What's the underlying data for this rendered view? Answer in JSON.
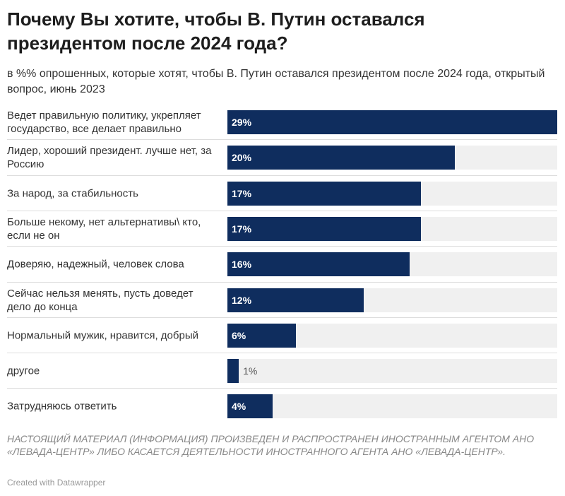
{
  "chart_data": {
    "type": "bar",
    "title": "Почему Вы хотите, чтобы В. Путин оставался президентом после 2024 года?",
    "subtitle": "в %% опрошенных, которые хотят, чтобы В. Путин оставался президентом после 2024 года, открытый вопрос, июнь 2023",
    "categories": [
      "Ведет правильную политику, укрепляет государство, все делает правильно",
      "Лидер, хороший президент. лучше нет, за Россию",
      "За народ, за стабильность",
      "Больше некому, нет альтернативы\\ кто, если не он",
      "Доверяю, надежный, человек слова",
      "Сейчас нельзя менять, пусть доведет дело до конца",
      "Нормальный мужик, нравится, добрый",
      "другое",
      "Затрудняюсь ответить"
    ],
    "values": [
      29,
      20,
      17,
      17,
      16,
      12,
      6,
      1,
      4
    ],
    "value_labels": [
      "29%",
      "20%",
      "17%",
      "17%",
      "16%",
      "12%",
      "6%",
      "1%",
      "4%"
    ],
    "color": "#0f2d5e",
    "note": "НАСТОЯЩИЙ МАТЕРИАЛ (ИНФОРМАЦИЯ) ПРОИЗВЕДЕН И РАСПРОСТРАНЕН ИНОСТРАННЫМ АГЕНТОМ АНО «ЛЕВАДА-ЦЕНТР» ЛИБО КАСАЕТСЯ ДЕЯТЕЛЬНОСТИ ИНОСТРАННОГО АГЕНТА АНО «ЛЕВАДА-ЦЕНТР».",
    "credit": "Created with Datawrapper"
  }
}
